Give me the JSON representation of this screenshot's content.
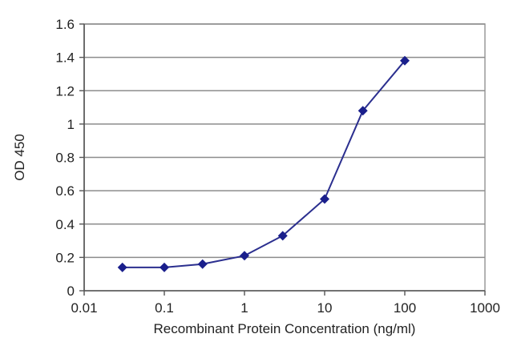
{
  "chart_data": {
    "type": "line",
    "title": "",
    "xlabel": "Recombinant Protein Concentration (ng/ml)",
    "ylabel": "OD 450",
    "x_scale": "log",
    "xlim": [
      0.01,
      1000
    ],
    "ylim": [
      0,
      1.6
    ],
    "x_ticks": [
      0.01,
      0.1,
      1,
      10,
      100,
      1000
    ],
    "x_tick_labels": [
      "0.01",
      "0.1",
      "1",
      "10",
      "100",
      "1000"
    ],
    "y_ticks": [
      0,
      0.2,
      0.4,
      0.6,
      0.8,
      1,
      1.2,
      1.4,
      1.6
    ],
    "y_tick_labels": [
      "0",
      "0.2",
      "0.4",
      "0.6",
      "0.8",
      "1",
      "1.2",
      "1.4",
      "1.6"
    ],
    "grid": "horizontal",
    "legend": "none",
    "series": [
      {
        "x": [
          0.03,
          0.1,
          0.3,
          1,
          3,
          10,
          30,
          100
        ],
        "y": [
          0.14,
          0.14,
          0.16,
          0.21,
          0.33,
          0.55,
          1.08,
          1.38
        ]
      }
    ],
    "colors": {
      "line": "#2b2f8f",
      "marker": "#1a1f8c",
      "grid": "#8c8c8c",
      "axis": "#555555",
      "plot_border": "#9a9a9a"
    }
  }
}
